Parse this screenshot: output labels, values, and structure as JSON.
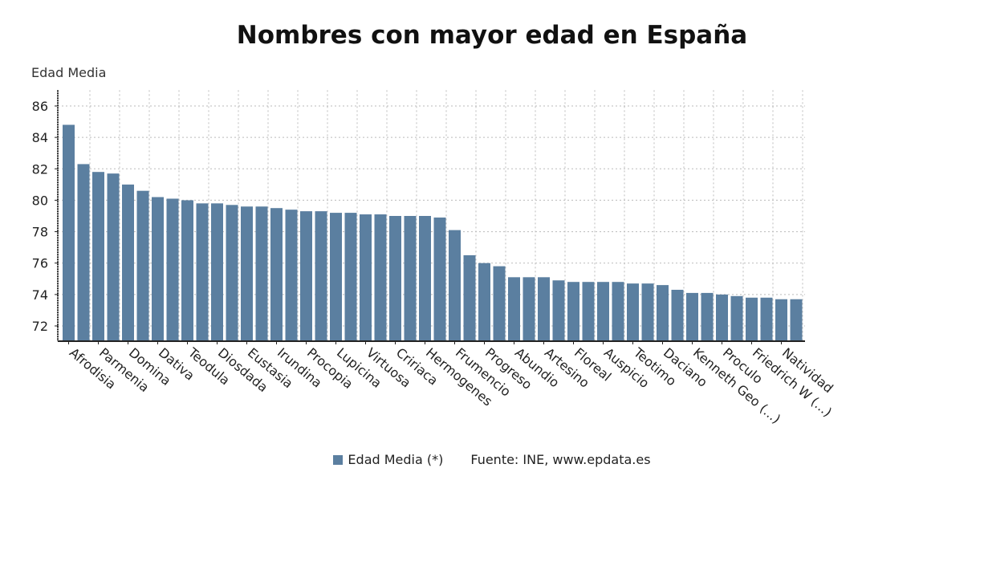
{
  "chart_data": {
    "type": "bar",
    "title": "Nombres con mayor edad en España",
    "ylabel": "Edad Media",
    "xlabel": "",
    "ylim": [
      71,
      87
    ],
    "yticks": [
      72,
      74,
      76,
      78,
      80,
      82,
      84,
      86
    ],
    "grid": true,
    "color": "#5b7fa0",
    "categories": [
      "Afrodisia",
      "",
      "Parmenia",
      "",
      "Domina",
      "",
      "Dativa",
      "",
      "Teodula",
      "",
      "Diosdada",
      "",
      "Eustasia",
      "",
      "Irundina",
      "",
      "Procopia",
      "",
      "Lupicina",
      "",
      "Virtuosa",
      "",
      "Cririaca",
      "",
      "Hermogenes",
      "",
      "Frumencio",
      "",
      "Progreso",
      "",
      "Abundio",
      "",
      "Artesino",
      "",
      "Floreal",
      "",
      "Auspicio",
      "",
      "Teotimo",
      "",
      "Daciano",
      "",
      "Kenneth Geo (...)",
      "",
      "Proculo",
      "",
      "Friedrich W (...)",
      "",
      "Natividad",
      ""
    ],
    "values": [
      84.8,
      82.3,
      81.8,
      81.7,
      81.0,
      80.6,
      80.2,
      80.1,
      80.0,
      79.8,
      79.8,
      79.7,
      79.6,
      79.6,
      79.5,
      79.4,
      79.3,
      79.3,
      79.2,
      79.2,
      79.1,
      79.1,
      79.0,
      79.0,
      79.0,
      78.9,
      78.1,
      76.5,
      76.0,
      75.8,
      75.1,
      75.1,
      75.1,
      74.9,
      74.8,
      74.8,
      74.8,
      74.8,
      74.7,
      74.7,
      74.6,
      74.3,
      74.1,
      74.1,
      74.0,
      73.9,
      73.8,
      73.8,
      73.7,
      73.7
    ],
    "legend": {
      "series_name": "Edad Media (*)",
      "source": "Fuente: INE, www.epdata.es",
      "position": "bottom"
    }
  }
}
